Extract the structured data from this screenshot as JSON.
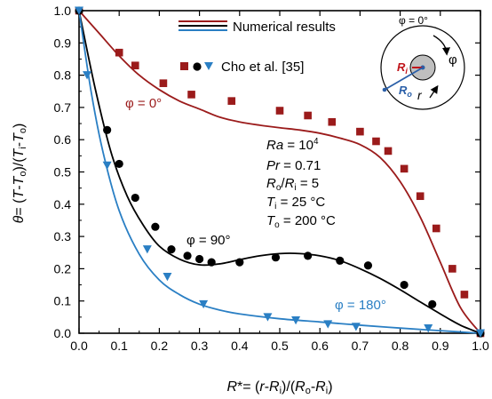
{
  "chart_data": {
    "type": "line",
    "xlabel": "R*= (r-R_i)/(R_o-R_i)",
    "ylabel": "θ= (T-T_o)/(T_i-T_o)",
    "xlim": [
      0.0,
      1.0
    ],
    "ylim": [
      0.0,
      1.0
    ],
    "x_ticks": [
      "0.0",
      "0.1",
      "0.2",
      "0.3",
      "0.4",
      "0.5",
      "0.6",
      "0.7",
      "0.8",
      "0.9",
      "1.0"
    ],
    "y_ticks": [
      "0.0",
      "0.1",
      "0.2",
      "0.3",
      "0.4",
      "0.5",
      "0.6",
      "0.7",
      "0.8",
      "0.9",
      "1.0"
    ],
    "grid": false,
    "legend": {
      "position": "top-center",
      "numerical_label": "Numerical results",
      "experimental_label": "Cho et al. [35]"
    },
    "colors": {
      "phi0": "#9b1b1b",
      "phi90": "#000000",
      "phi180": "#2a7fc4"
    },
    "annotations": {
      "phi0": "φ = 0°",
      "phi90": "φ = 90°",
      "phi180": "φ = 180°"
    },
    "params": [
      "Ra = 10^4",
      "Pr = 0.71",
      "R_o/R_i = 5",
      "T_i = 25 °C",
      "T_o = 200 °C"
    ],
    "inset": {
      "angle_label": "φ = 0°",
      "ri_label": "R_i",
      "ro_label": "R_o",
      "phi_label": "φ",
      "r_label": "r"
    },
    "series": [
      {
        "name": "φ = 0° (numerical)",
        "kind": "line",
        "color": "#9b1b1b",
        "x": [
          0.0,
          0.05,
          0.1,
          0.15,
          0.2,
          0.25,
          0.3,
          0.35,
          0.4,
          0.45,
          0.5,
          0.55,
          0.6,
          0.65,
          0.7,
          0.75,
          0.8,
          0.85,
          0.9,
          0.95,
          1.0
        ],
        "y": [
          1.0,
          0.93,
          0.86,
          0.8,
          0.755,
          0.72,
          0.695,
          0.67,
          0.655,
          0.645,
          0.637,
          0.63,
          0.62,
          0.605,
          0.585,
          0.545,
          0.47,
          0.36,
          0.22,
          0.08,
          0.0
        ]
      },
      {
        "name": "φ = 90° (numerical)",
        "kind": "line",
        "color": "#000000",
        "x": [
          0.0,
          0.04,
          0.08,
          0.12,
          0.16,
          0.2,
          0.25,
          0.3,
          0.35,
          0.4,
          0.45,
          0.5,
          0.55,
          0.6,
          0.65,
          0.7,
          0.75,
          0.8,
          0.85,
          0.9,
          0.95,
          1.0
        ],
        "y": [
          1.0,
          0.76,
          0.56,
          0.425,
          0.335,
          0.27,
          0.23,
          0.212,
          0.215,
          0.228,
          0.24,
          0.247,
          0.247,
          0.24,
          0.225,
          0.2,
          0.17,
          0.135,
          0.097,
          0.06,
          0.025,
          0.0
        ]
      },
      {
        "name": "φ = 180° (numerical)",
        "kind": "line",
        "color": "#2a7fc4",
        "x": [
          0.0,
          0.03,
          0.06,
          0.1,
          0.15,
          0.2,
          0.25,
          0.3,
          0.35,
          0.4,
          0.5,
          0.6,
          0.7,
          0.8,
          0.9,
          1.0
        ],
        "y": [
          1.0,
          0.75,
          0.56,
          0.38,
          0.245,
          0.165,
          0.12,
          0.09,
          0.072,
          0.06,
          0.045,
          0.035,
          0.025,
          0.016,
          0.008,
          0.0
        ]
      },
      {
        "name": "φ = 0° (Cho et al. [35])",
        "kind": "square",
        "color": "#9b1b1b",
        "x": [
          0.0,
          0.1,
          0.14,
          0.21,
          0.28,
          0.38,
          0.5,
          0.57,
          0.63,
          0.7,
          0.74,
          0.77,
          0.81,
          0.85,
          0.89,
          0.93,
          0.96,
          1.0
        ],
        "y": [
          1.0,
          0.87,
          0.83,
          0.775,
          0.74,
          0.72,
          0.69,
          0.675,
          0.655,
          0.625,
          0.595,
          0.565,
          0.51,
          0.425,
          0.325,
          0.2,
          0.12,
          0.0
        ]
      },
      {
        "name": "φ = 90° (Cho et al. [35])",
        "kind": "circle",
        "color": "#000000",
        "x": [
          0.0,
          0.07,
          0.1,
          0.14,
          0.19,
          0.23,
          0.27,
          0.3,
          0.33,
          0.4,
          0.49,
          0.57,
          0.65,
          0.72,
          0.81,
          0.88,
          1.0
        ],
        "y": [
          1.0,
          0.63,
          0.525,
          0.42,
          0.33,
          0.26,
          0.24,
          0.23,
          0.22,
          0.22,
          0.235,
          0.24,
          0.225,
          0.21,
          0.15,
          0.09,
          0.0
        ]
      },
      {
        "name": "φ = 180° (Cho et al. [35])",
        "kind": "triangle",
        "color": "#2a7fc4",
        "x": [
          0.0,
          0.02,
          0.07,
          0.17,
          0.22,
          0.31,
          0.47,
          0.54,
          0.62,
          0.69,
          0.87,
          1.0
        ],
        "y": [
          1.0,
          0.8,
          0.52,
          0.26,
          0.175,
          0.09,
          0.05,
          0.04,
          0.028,
          0.02,
          0.015,
          0.0
        ]
      }
    ]
  }
}
